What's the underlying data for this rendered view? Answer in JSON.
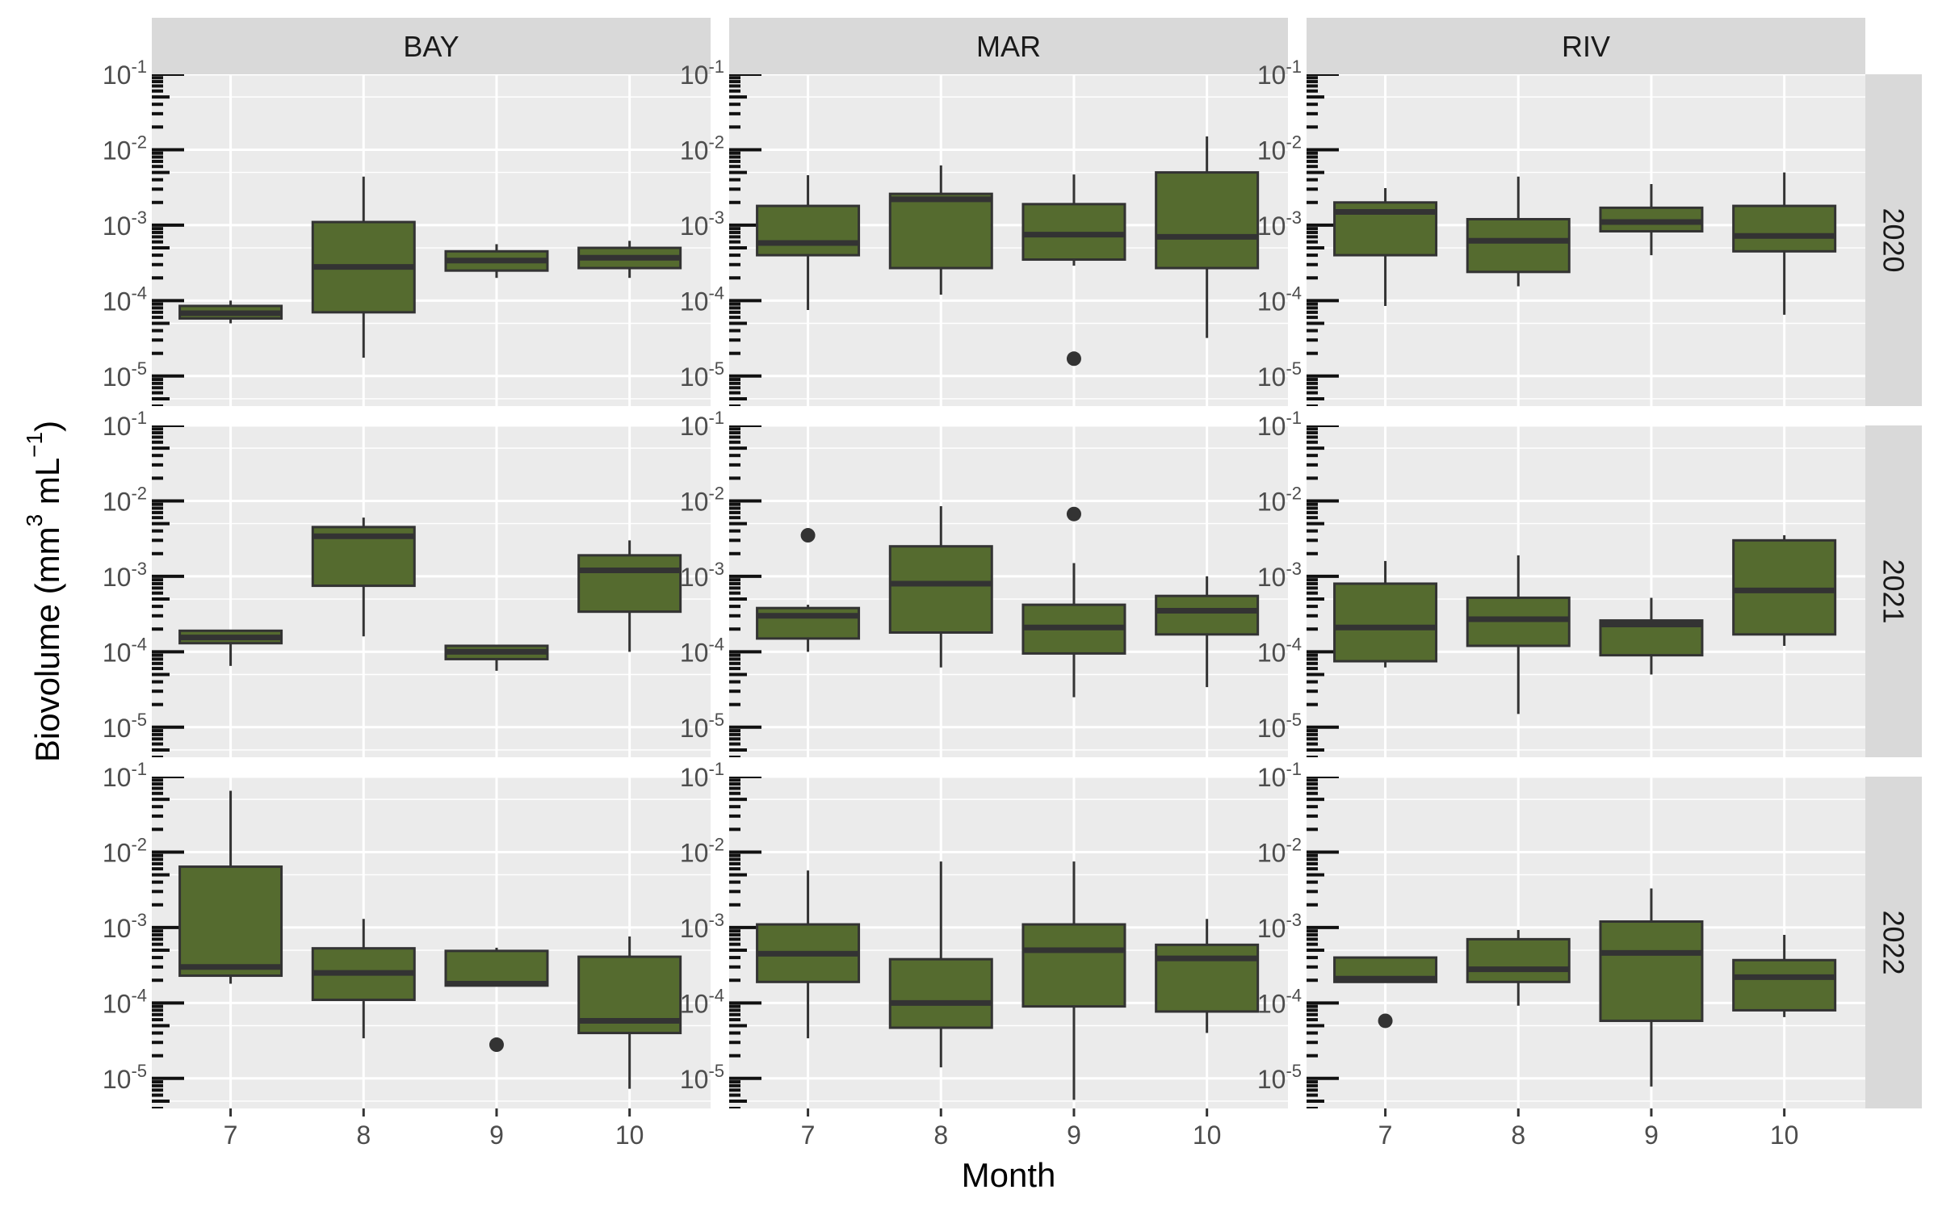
{
  "chart_data": {
    "type": "boxplot",
    "layout": "facet_grid",
    "xlabel": "Month",
    "ylabel": "Biovolume (mm³ mL⁻¹)",
    "ylabel_parts": {
      "pre": "Biovolume (mm",
      "sup1": "3",
      "mid": " mL",
      "sup2": "−1",
      "post": ")"
    },
    "y_scale": "log10",
    "ylim": [
      4e-06,
      0.1
    ],
    "y_tick_labels": [
      {
        "value": 0.1,
        "base": "10",
        "exp": "-1"
      },
      {
        "value": 0.01,
        "base": "10",
        "exp": "-2"
      },
      {
        "value": 0.001,
        "base": "10",
        "exp": "-3"
      },
      {
        "value": 0.0001,
        "base": "10",
        "exp": "-4"
      },
      {
        "value": 1e-05,
        "base": "10",
        "exp": "-5"
      }
    ],
    "x_categories": [
      "7",
      "8",
      "9",
      "10"
    ],
    "column_strips": [
      "BAY",
      "MAR",
      "RIV"
    ],
    "row_strips": [
      "2020",
      "2021",
      "2022"
    ],
    "colors": {
      "box_fill": "#556B2F",
      "box_line": "#333333",
      "panel_bg": "#EBEBEB",
      "strip_bg": "#D9D9D9",
      "grid": "#FFFFFF"
    },
    "grid": true,
    "panels": [
      {
        "row": "2020",
        "col": "BAY",
        "boxes": [
          {
            "x": "7",
            "q1": 5.8e-05,
            "median": 6.8e-05,
            "q3": 8.5e-05,
            "lower": 5e-05,
            "upper": 0.0001,
            "outliers": []
          },
          {
            "x": "8",
            "q1": 7e-05,
            "median": 0.00028,
            "q3": 0.0011,
            "lower": 1.75e-05,
            "upper": 0.0044,
            "outliers": []
          },
          {
            "x": "9",
            "q1": 0.00025,
            "median": 0.00034,
            "q3": 0.00045,
            "lower": 0.0002,
            "upper": 0.00056,
            "outliers": []
          },
          {
            "x": "10",
            "q1": 0.00027,
            "median": 0.00037,
            "q3": 0.0005,
            "lower": 0.0002,
            "upper": 0.00062,
            "outliers": []
          }
        ]
      },
      {
        "row": "2020",
        "col": "MAR",
        "boxes": [
          {
            "x": "7",
            "q1": 0.0004,
            "median": 0.00058,
            "q3": 0.0018,
            "lower": 7.5e-05,
            "upper": 0.0046,
            "outliers": []
          },
          {
            "x": "8",
            "q1": 0.00027,
            "median": 0.0022,
            "q3": 0.0026,
            "lower": 0.00012,
            "upper": 0.0062,
            "outliers": []
          },
          {
            "x": "9",
            "q1": 0.00035,
            "median": 0.00075,
            "q3": 0.0019,
            "lower": 0.00029,
            "upper": 0.0047,
            "outliers": [
              1.7e-05
            ]
          },
          {
            "x": "10",
            "q1": 0.00027,
            "median": 0.0007,
            "q3": 0.005,
            "lower": 3.2e-05,
            "upper": 0.015,
            "outliers": []
          }
        ]
      },
      {
        "row": "2020",
        "col": "RIV",
        "boxes": [
          {
            "x": "7",
            "q1": 0.0004,
            "median": 0.0015,
            "q3": 0.002,
            "lower": 8.5e-05,
            "upper": 0.0031,
            "outliers": []
          },
          {
            "x": "8",
            "q1": 0.00024,
            "median": 0.00062,
            "q3": 0.0012,
            "lower": 0.000155,
            "upper": 0.0044,
            "outliers": []
          },
          {
            "x": "9",
            "q1": 0.00083,
            "median": 0.0011,
            "q3": 0.0017,
            "lower": 0.0004,
            "upper": 0.0035,
            "outliers": []
          },
          {
            "x": "10",
            "q1": 0.00045,
            "median": 0.00072,
            "q3": 0.0018,
            "lower": 6.5e-05,
            "upper": 0.005,
            "outliers": []
          }
        ]
      },
      {
        "row": "2021",
        "col": "BAY",
        "boxes": [
          {
            "x": "7",
            "q1": 0.00013,
            "median": 0.000155,
            "q3": 0.00019,
            "lower": 6.5e-05,
            "upper": 0.00019,
            "outliers": []
          },
          {
            "x": "8",
            "q1": 0.00075,
            "median": 0.0034,
            "q3": 0.0045,
            "lower": 0.00016,
            "upper": 0.006,
            "outliers": []
          },
          {
            "x": "9",
            "q1": 8e-05,
            "median": 0.0001,
            "q3": 0.00012,
            "lower": 5.6e-05,
            "upper": 0.00012,
            "outliers": []
          },
          {
            "x": "10",
            "q1": 0.00034,
            "median": 0.0012,
            "q3": 0.0019,
            "lower": 0.0001,
            "upper": 0.003,
            "outliers": []
          }
        ]
      },
      {
        "row": "2021",
        "col": "MAR",
        "boxes": [
          {
            "x": "7",
            "q1": 0.00015,
            "median": 0.0003,
            "q3": 0.00038,
            "lower": 0.0001,
            "upper": 0.00042,
            "outliers": [
              0.0035
            ]
          },
          {
            "x": "8",
            "q1": 0.00018,
            "median": 0.0008,
            "q3": 0.0025,
            "lower": 6.2e-05,
            "upper": 0.0085,
            "outliers": []
          },
          {
            "x": "9",
            "q1": 9.5e-05,
            "median": 0.00021,
            "q3": 0.00042,
            "lower": 2.5e-05,
            "upper": 0.0015,
            "outliers": [
              0.0067
            ]
          },
          {
            "x": "10",
            "q1": 0.00017,
            "median": 0.00035,
            "q3": 0.00055,
            "lower": 3.4e-05,
            "upper": 0.001,
            "outliers": []
          }
        ]
      },
      {
        "row": "2021",
        "col": "RIV",
        "boxes": [
          {
            "x": "7",
            "q1": 7.5e-05,
            "median": 0.00021,
            "q3": 0.0008,
            "lower": 6.2e-05,
            "upper": 0.0016,
            "outliers": []
          },
          {
            "x": "8",
            "q1": 0.00012,
            "median": 0.00027,
            "q3": 0.00052,
            "lower": 1.5e-05,
            "upper": 0.0019,
            "outliers": []
          },
          {
            "x": "9",
            "q1": 9e-05,
            "median": 0.00023,
            "q3": 0.00026,
            "lower": 5e-05,
            "upper": 0.00052,
            "outliers": []
          },
          {
            "x": "10",
            "q1": 0.00017,
            "median": 0.00065,
            "q3": 0.003,
            "lower": 0.00012,
            "upper": 0.0035,
            "outliers": []
          }
        ]
      },
      {
        "row": "2022",
        "col": "BAY",
        "boxes": [
          {
            "x": "7",
            "q1": 0.00023,
            "median": 0.0003,
            "q3": 0.0064,
            "lower": 0.00018,
            "upper": 0.065,
            "outliers": []
          },
          {
            "x": "8",
            "q1": 0.00011,
            "median": 0.00025,
            "q3": 0.00053,
            "lower": 3.4e-05,
            "upper": 0.0013,
            "outliers": []
          },
          {
            "x": "9",
            "q1": 0.00017,
            "median": 0.00018,
            "q3": 0.00049,
            "lower": 0.00017,
            "upper": 0.00054,
            "outliers": [
              2.8e-05
            ]
          },
          {
            "x": "10",
            "q1": 4e-05,
            "median": 5.8e-05,
            "q3": 0.00041,
            "lower": 7.3e-06,
            "upper": 0.00076,
            "outliers": []
          }
        ]
      },
      {
        "row": "2022",
        "col": "MAR",
        "boxes": [
          {
            "x": "7",
            "q1": 0.00019,
            "median": 0.00045,
            "q3": 0.0011,
            "lower": 3.4e-05,
            "upper": 0.0057,
            "outliers": []
          },
          {
            "x": "8",
            "q1": 4.7e-05,
            "median": 0.0001,
            "q3": 0.00038,
            "lower": 1.4e-05,
            "upper": 0.0075,
            "outliers": []
          },
          {
            "x": "9",
            "q1": 9e-05,
            "median": 0.0005,
            "q3": 0.0011,
            "lower": 5.2e-06,
            "upper": 0.0075,
            "outliers": []
          },
          {
            "x": "10",
            "q1": 7.7e-05,
            "median": 0.00039,
            "q3": 0.00059,
            "lower": 4e-05,
            "upper": 0.0013,
            "outliers": []
          }
        ]
      },
      {
        "row": "2022",
        "col": "RIV",
        "boxes": [
          {
            "x": "7",
            "q1": 0.00019,
            "median": 0.00021,
            "q3": 0.0004,
            "lower": 0.00019,
            "upper": 0.0004,
            "outliers": [
              5.8e-05
            ]
          },
          {
            "x": "8",
            "q1": 0.00019,
            "median": 0.00028,
            "q3": 0.0007,
            "lower": 9.2e-05,
            "upper": 0.00093,
            "outliers": []
          },
          {
            "x": "9",
            "q1": 5.8e-05,
            "median": 0.00046,
            "q3": 0.0012,
            "lower": 7.8e-06,
            "upper": 0.0033,
            "outliers": []
          },
          {
            "x": "10",
            "q1": 8e-05,
            "median": 0.00022,
            "q3": 0.00037,
            "lower": 6.5e-05,
            "upper": 0.0008,
            "outliers": []
          }
        ]
      }
    ]
  }
}
